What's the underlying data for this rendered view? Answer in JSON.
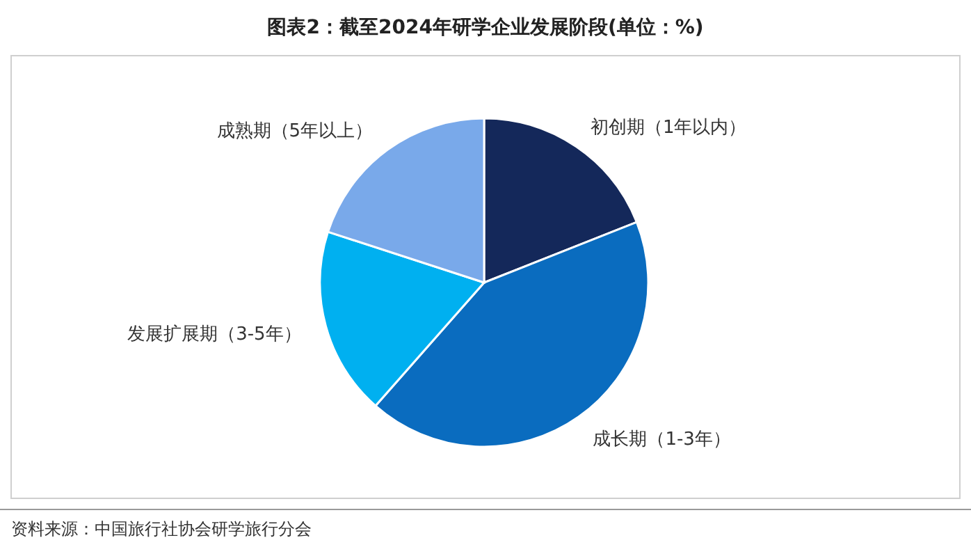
{
  "chart_data": {
    "type": "pie",
    "title": "图表2：截至2024年研学企业发展阶段(单位：%)",
    "categories": [
      "初创期（1年以内）",
      "成长期（1-3年）",
      "发展扩展期（3-5年）",
      "成熟期（5年以上）"
    ],
    "values": [
      19,
      42.5,
      18.5,
      20
    ],
    "colors": [
      "#14285a",
      "#0a6cbf",
      "#00b0f0",
      "#79a9ea"
    ],
    "legend": false,
    "annotations": [
      "资料来源：中国旅行社协会研学旅行分会"
    ]
  }
}
